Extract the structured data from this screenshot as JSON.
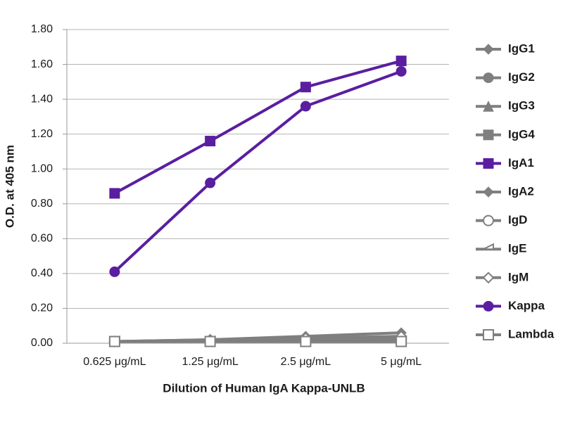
{
  "chart_data": {
    "type": "line",
    "ylabel": "O.D. at 405 nm",
    "xlabel": "Dilution of Human IgA Kappa-UNLB",
    "categories": [
      "0.625 μg/mL",
      "1.25 μg/mL",
      "2.5 μg/mL",
      "5 μg/mL"
    ],
    "ylim": [
      0,
      1.8
    ],
    "yticks": [
      {
        "value": 0,
        "label": "0.00"
      },
      {
        "value": 0.2,
        "label": "0.20"
      },
      {
        "value": 0.4,
        "label": "0.40"
      },
      {
        "value": 0.6,
        "label": "0.60"
      },
      {
        "value": 0.8,
        "label": "0.80"
      },
      {
        "value": 1.0,
        "label": "1.00"
      },
      {
        "value": 1.2,
        "label": "1.20"
      },
      {
        "value": 1.4,
        "label": "1.40"
      },
      {
        "value": 1.6,
        "label": "1.60"
      },
      {
        "value": 1.8,
        "label": "1.80"
      }
    ],
    "grid": true,
    "legend": "right",
    "series": [
      {
        "name": "IgG1",
        "color": "#7f7f7f",
        "marker": "diamond",
        "values": [
          0.01,
          0.01,
          0.02,
          0.02
        ]
      },
      {
        "name": "IgG2",
        "color": "#7f7f7f",
        "marker": "circle",
        "values": [
          0.01,
          0.01,
          0.01,
          0.01
        ]
      },
      {
        "name": "IgG3",
        "color": "#7f7f7f",
        "marker": "triangle",
        "values": [
          0.01,
          0.01,
          0.02,
          0.03
        ]
      },
      {
        "name": "IgG4",
        "color": "#7f7f7f",
        "marker": "square",
        "values": [
          0.01,
          0.01,
          0.01,
          0.01
        ]
      },
      {
        "name": "IgA1",
        "color": "#5a1ea0",
        "marker": "square",
        "values": [
          0.86,
          1.16,
          1.47,
          1.62
        ]
      },
      {
        "name": "IgA2",
        "color": "#7f7f7f",
        "marker": "diamond",
        "values": [
          0.01,
          0.02,
          0.04,
          0.06
        ]
      },
      {
        "name": "IgD",
        "color": "#7f7f7f",
        "marker": "circle-open",
        "values": [
          0.01,
          0.01,
          0.01,
          0.01
        ]
      },
      {
        "name": "IgE",
        "color": "#7f7f7f",
        "marker": "half-triangle-open",
        "values": [
          0.01,
          0.01,
          0.01,
          0.01
        ]
      },
      {
        "name": "IgM",
        "color": "#7f7f7f",
        "marker": "diamond-open",
        "values": [
          0.01,
          0.02,
          0.03,
          0.04
        ]
      },
      {
        "name": "Kappa",
        "color": "#5a1ea0",
        "marker": "circle",
        "values": [
          0.41,
          0.92,
          1.36,
          1.56
        ]
      },
      {
        "name": "Lambda",
        "color": "#7f7f7f",
        "marker": "square-open",
        "values": [
          0.01,
          0.01,
          0.01,
          0.01
        ]
      }
    ]
  }
}
